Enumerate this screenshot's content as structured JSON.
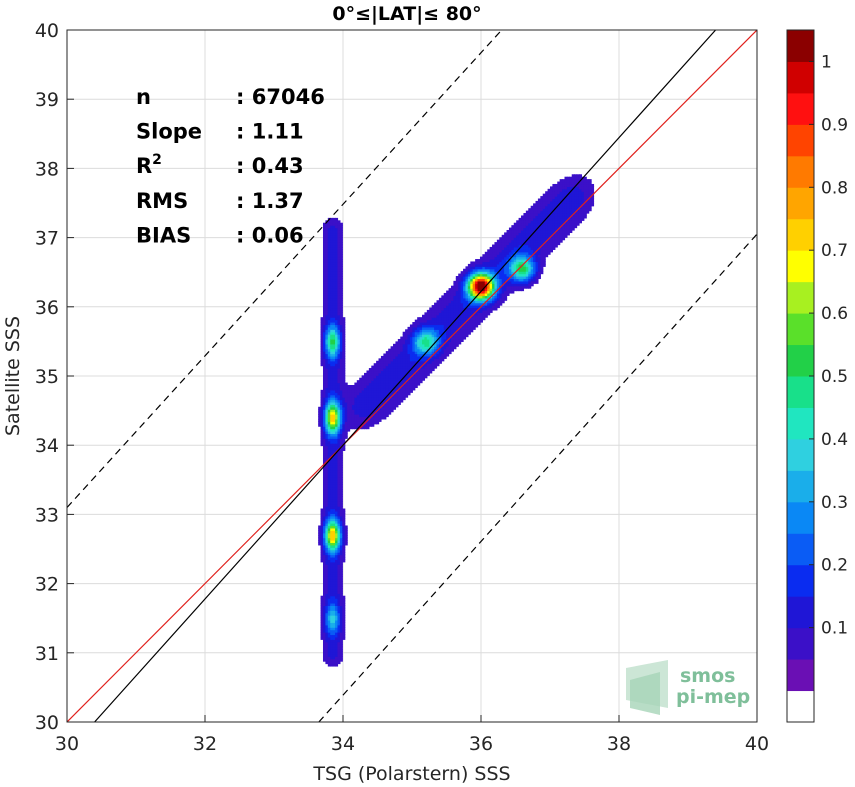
{
  "chart_data": {
    "type": "heatmap",
    "title": "0°≤|LAT|≤ 80°",
    "xlabel": "TSG (Polarstern) SSS",
    "ylabel": "Satellite SSS",
    "xlim": [
      30,
      40
    ],
    "ylim": [
      30,
      40
    ],
    "xticks": [
      "30",
      "32",
      "34",
      "36",
      "38",
      "40"
    ],
    "yticks": [
      "30",
      "31",
      "32",
      "33",
      "34",
      "35",
      "36",
      "37",
      "38",
      "39",
      "40"
    ],
    "grid": true,
    "stats": [
      {
        "label": "n",
        "value": ": 67046"
      },
      {
        "label": "Slope",
        "value": ": 1.11"
      },
      {
        "label": "R",
        "sup": "2",
        "value": ": 0.43"
      },
      {
        "label": "RMS",
        "value": ": 1.37"
      },
      {
        "label": "BIAS",
        "value": ": 0.06"
      }
    ],
    "reference_lines": [
      {
        "name": "identity",
        "color": "#e0201c",
        "style": "solid",
        "points": [
          [
            30,
            30
          ],
          [
            40,
            40
          ]
        ]
      },
      {
        "name": "regression",
        "color": "#000000",
        "style": "solid",
        "points": [
          [
            30.4,
            30
          ],
          [
            39.4,
            40
          ]
        ]
      },
      {
        "name": "upper-bound",
        "color": "#000000",
        "style": "dashed",
        "points": [
          [
            30,
            33.1
          ],
          [
            36.3,
            40
          ]
        ]
      },
      {
        "name": "lower-bound",
        "color": "#000000",
        "style": "dashed",
        "points": [
          [
            33.65,
            30
          ],
          [
            40,
            37.05
          ]
        ]
      }
    ],
    "density_peaks": [
      {
        "x": 33.85,
        "y": 34.4,
        "level": 0.6
      },
      {
        "x": 33.85,
        "y": 32.7,
        "level": 0.65
      },
      {
        "x": 33.85,
        "y": 35.5,
        "level": 0.4
      },
      {
        "x": 33.85,
        "y": 31.5,
        "level": 0.25
      },
      {
        "x": 36.0,
        "y": 36.3,
        "level": 1.0
      },
      {
        "x": 36.6,
        "y": 36.55,
        "level": 0.45
      },
      {
        "x": 35.2,
        "y": 35.5,
        "level": 0.35
      }
    ],
    "colorbar": {
      "ticks": [
        "0.1",
        "0.2",
        "0.3",
        "0.4",
        "0.5",
        "0.6",
        "0.7",
        "0.8",
        "0.9",
        "1"
      ],
      "levels": [
        0,
        0.05,
        0.1,
        0.15,
        0.2,
        0.25,
        0.3,
        0.35,
        0.4,
        0.45,
        0.5,
        0.55,
        0.6,
        0.65,
        0.7,
        0.75,
        0.8,
        0.85,
        0.9,
        0.95,
        1.0
      ],
      "colors": [
        "#ffffff",
        "#6a0fb4",
        "#3b10c8",
        "#1f16d6",
        "#0a2cf0",
        "#0a5cf5",
        "#0a88f5",
        "#1aaeea",
        "#2fd0e0",
        "#20e6c0",
        "#18e08a",
        "#22d048",
        "#5ae02a",
        "#a8f020",
        "#ffff00",
        "#ffd000",
        "#ffa500",
        "#ff7a00",
        "#ff4400",
        "#ff1010",
        "#d00000",
        "#8b0000"
      ]
    },
    "logo": [
      "smos",
      "pi-mep"
    ]
  }
}
